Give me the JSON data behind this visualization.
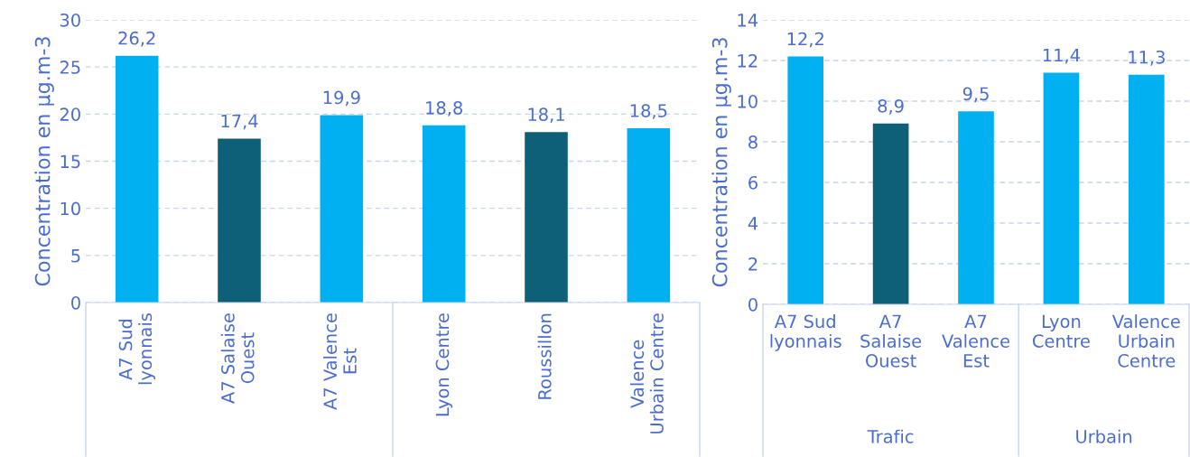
{
  "chart_data": [
    {
      "type": "bar",
      "ylabel": "Concentration en µg.m-3",
      "categories": [
        "A7 Sud\nlyonnais",
        "A7 Salaise\nOuest",
        "A7 Valence\nEst",
        "Lyon Centre",
        "Roussillon",
        "Valence\nUrbain Centre"
      ],
      "values": [
        26.2,
        17.4,
        19.9,
        18.8,
        18.1,
        18.5
      ],
      "value_labels": [
        "26,2",
        "17,4",
        "19,9",
        "18,8",
        "18,1",
        "18,5"
      ],
      "colors": [
        "#00b0f0",
        "#0e6079",
        "#00b0f0",
        "#00b0f0",
        "#0e6079",
        "#00b0f0"
      ],
      "ylim": [
        0,
        30
      ],
      "yticks": [
        0,
        5,
        10,
        15,
        20,
        25,
        30
      ],
      "grid": "y"
    },
    {
      "type": "bar",
      "ylabel": "Concentration en µg.m-3",
      "categories": [
        "A7 Sud\nlyonnais",
        "A7\nSalaise\nOuest",
        "A7\nValence\nEst",
        "Lyon\nCentre",
        "Valence\nUrbain\nCentre"
      ],
      "values": [
        12.2,
        8.9,
        9.5,
        11.4,
        11.3
      ],
      "value_labels": [
        "12,2",
        "8,9",
        "9,5",
        "11,4",
        "11,3"
      ],
      "colors": [
        "#00b0f0",
        "#0e6079",
        "#00b0f0",
        "#00b0f0",
        "#00b0f0"
      ],
      "ylim": [
        0,
        14
      ],
      "yticks": [
        0,
        2,
        4,
        6,
        8,
        10,
        12,
        14
      ],
      "grid": "y",
      "annotations": [
        "Trafic",
        "Urbain"
      ]
    }
  ]
}
